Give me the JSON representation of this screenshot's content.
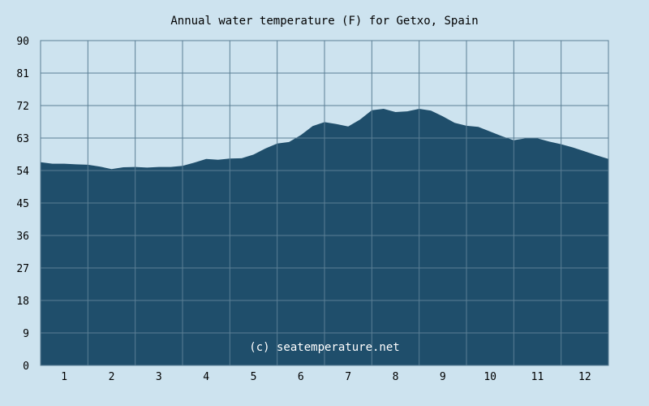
{
  "chart_data": {
    "type": "area",
    "title": "Annual water temperature (F) for Getxo, Spain",
    "xlabel": "",
    "ylabel": "",
    "ylim": [
      0,
      90
    ],
    "xlim": [
      0.5,
      12.5
    ],
    "y_ticks": [
      "0",
      "9",
      "18",
      "27",
      "36",
      "45",
      "54",
      "63",
      "72",
      "81",
      "90"
    ],
    "x_ticks": [
      "1",
      "2",
      "3",
      "4",
      "5",
      "6",
      "7",
      "8",
      "9",
      "10",
      "11",
      "12"
    ],
    "grid": true,
    "watermark": "(c) seatemperature.net",
    "x": [
      0.5,
      0.75,
      1.0,
      1.25,
      1.5,
      1.75,
      2.0,
      2.25,
      2.5,
      2.75,
      3.0,
      3.25,
      3.5,
      3.75,
      4.0,
      4.25,
      4.5,
      4.75,
      5.0,
      5.25,
      5.5,
      5.75,
      6.0,
      6.25,
      6.5,
      6.75,
      7.0,
      7.25,
      7.5,
      7.75,
      8.0,
      8.25,
      8.5,
      8.75,
      9.0,
      9.25,
      9.5,
      9.75,
      10.0,
      10.25,
      10.5,
      10.75,
      11.0,
      11.25,
      11.5,
      11.75,
      12.0,
      12.25,
      12.5
    ],
    "y": [
      56.3,
      55.9,
      55.9,
      55.7,
      55.6,
      55.1,
      54.4,
      54.9,
      55.0,
      54.8,
      55.0,
      55.0,
      55.3,
      56.2,
      57.2,
      57.0,
      57.3,
      57.4,
      58.4,
      60.1,
      61.5,
      61.9,
      63.8,
      66.3,
      67.4,
      66.9,
      66.2,
      68.1,
      70.7,
      71.1,
      70.2,
      70.4,
      71.1,
      70.6,
      69.0,
      67.2,
      66.4,
      66.1,
      64.8,
      63.5,
      62.4,
      62.9,
      62.9,
      62.0,
      61.3,
      60.4,
      59.3,
      58.2,
      57.2
    ],
    "colors": {
      "background": "#cde3ef",
      "area": "#1f4e6b",
      "grid": "#5b7f95",
      "text": "#000000",
      "watermark": "#ffffff"
    }
  }
}
